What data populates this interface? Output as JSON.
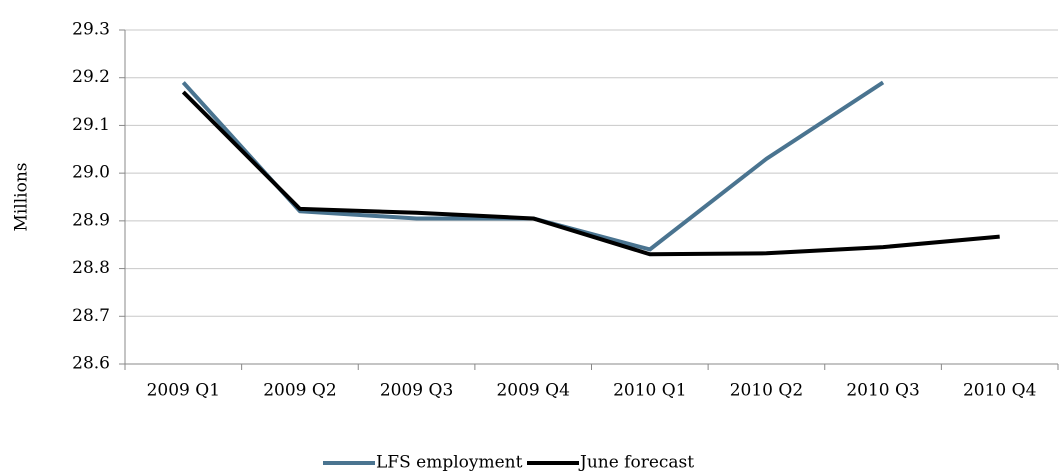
{
  "chart_data": {
    "type": "line",
    "y_label": "Millions",
    "categories": [
      "2009 Q1",
      "2009 Q2",
      "2009 Q3",
      "2009 Q4",
      "2010 Q1",
      "2010 Q2",
      "2010 Q3",
      "2010 Q4"
    ],
    "series": [
      {
        "name": "LFS employment",
        "color": "#4a7490",
        "values": [
          29.19,
          28.92,
          28.905,
          28.905,
          28.84,
          29.03,
          29.19,
          null
        ]
      },
      {
        "name": "June forecast",
        "color": "#000000",
        "values": [
          29.17,
          28.925,
          28.917,
          28.905,
          28.83,
          28.832,
          28.845,
          28.867
        ]
      }
    ],
    "ylim": [
      28.6,
      29.3
    ],
    "yticks": [
      28.6,
      28.7,
      28.8,
      28.9,
      {
        "value": 29,
        "label": "29.0"
      },
      29.1,
      29.2,
      29.3
    ],
    "grid": true,
    "legend": "bottom"
  }
}
